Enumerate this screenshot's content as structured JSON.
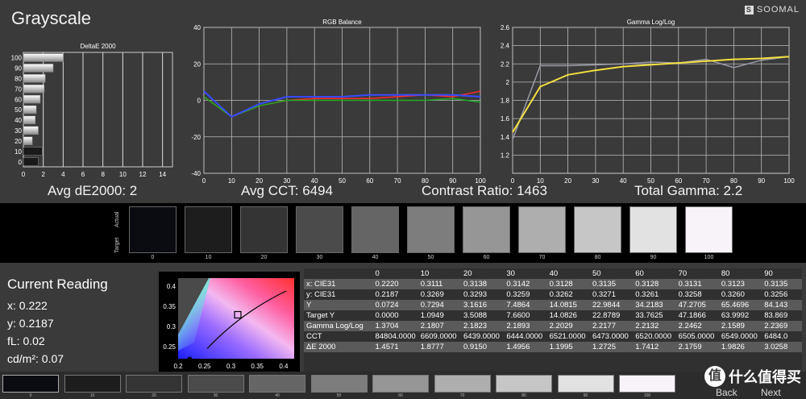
{
  "header": {
    "title": "Grayscale",
    "brand": "SOOMAL",
    "brand_mark": "S"
  },
  "summary": {
    "avg_de": "Avg dE2000: 2",
    "avg_cct": "Avg CCT: 6494",
    "contrast": "Contrast Ratio: 1463",
    "gamma": "Total Gamma: 2.2"
  },
  "swatches": {
    "actual_label": "Actual",
    "target_label": "Target",
    "labels": [
      "0",
      "10",
      "20",
      "30",
      "40",
      "50",
      "60",
      "70",
      "80",
      "90",
      "100"
    ],
    "grays": [
      "#0b0b12",
      "#1d1d1d",
      "#343434",
      "#4b4b4b",
      "#656565",
      "#7d7d7d",
      "#969696",
      "#aeaeae",
      "#c6c6c6",
      "#e2e2e2",
      "#f8f3f8"
    ]
  },
  "current": {
    "title": "Current Reading",
    "x": "x: 0.222",
    "y": "y: 0.2187",
    "fl": "fL: 0.02",
    "cdm": "cd/m²: 0.07"
  },
  "readings": {
    "columns": [
      "0",
      "10",
      "20",
      "30",
      "40",
      "50",
      "60",
      "70",
      "80",
      "90"
    ],
    "rows": [
      {
        "label": "x: CIE31",
        "values": [
          "0.2220",
          "0.3111",
          "0.3138",
          "0.3142",
          "0.3128",
          "0.3135",
          "0.3128",
          "0.3131",
          "0.3123",
          "0.3135"
        ]
      },
      {
        "label": "y: CIE31",
        "values": [
          "0.2187",
          "0.3269",
          "0.3293",
          "0.3259",
          "0.3262",
          "0.3271",
          "0.3261",
          "0.3258",
          "0.3260",
          "0.3256"
        ]
      },
      {
        "label": "Y",
        "values": [
          "0.0724",
          "0.7294",
          "3.1616",
          "7.4864",
          "14.0815",
          "22.9844",
          "34.2183",
          "47.2705",
          "65.4696",
          "84.143"
        ]
      },
      {
        "label": "Target Y",
        "values": [
          "0.0000",
          "1.0949",
          "3.5088",
          "7.6600",
          "14.0826",
          "22.8789",
          "33.7625",
          "47.1866",
          "63.9992",
          "83.869"
        ]
      },
      {
        "label": "Gamma Log/Log",
        "values": [
          "1.3704",
          "2.1807",
          "2.1823",
          "2.1893",
          "2.2029",
          "2.2177",
          "2.2132",
          "2.2462",
          "2.1589",
          "2.2369"
        ]
      },
      {
        "label": "CCT",
        "values": [
          "84804.0000",
          "6609.0000",
          "6439.0000",
          "6444.0000",
          "6521.0000",
          "6473.0000",
          "6520.0000",
          "6505.0000",
          "6549.0000",
          "6484.0"
        ]
      },
      {
        "label": "ΔE 2000",
        "values": [
          "1.4571",
          "1.8777",
          "0.9150",
          "1.4956",
          "1.1995",
          "1.2725",
          "1.7412",
          "2.1759",
          "1.9826",
          "3.0258"
        ]
      }
    ]
  },
  "bottom": {
    "labels": [
      "0",
      "10",
      "20",
      "30",
      "40",
      "50",
      "60",
      "70",
      "80",
      "90",
      "100"
    ],
    "back": "Back",
    "next": "Next",
    "watermark": "什么值得买",
    "watermark_mark": "值"
  },
  "chart_data": [
    {
      "type": "bar",
      "title": "DeltaE 2000",
      "orientation": "horizontal",
      "categories": [
        "100",
        "90",
        "80",
        "70",
        "60",
        "50",
        "40",
        "30",
        "20",
        "10",
        "0"
      ],
      "values": [
        4.0,
        3.0,
        2.2,
        2.1,
        1.7,
        1.3,
        1.2,
        1.5,
        0.9,
        1.9,
        1.5
      ],
      "xlim": [
        0,
        15
      ],
      "xticks": [
        "0",
        "2",
        "4",
        "6",
        "8",
        "10",
        "12",
        "14"
      ],
      "grid": true
    },
    {
      "type": "line",
      "title": "RGB Balance",
      "x": [
        0,
        10,
        20,
        30,
        40,
        50,
        60,
        70,
        80,
        90,
        100
      ],
      "ylim": [
        -40,
        40
      ],
      "yticks": [
        "40",
        "20",
        "0",
        "-20",
        "-40"
      ],
      "xticks": [
        "0",
        "10",
        "20",
        "30",
        "40",
        "50",
        "60",
        "70",
        "80",
        "90",
        "100"
      ],
      "series": [
        {
          "color": "#ff2a2a",
          "values": [
            2,
            -9,
            -3,
            0,
            1,
            1,
            1,
            2,
            3,
            2,
            5
          ]
        },
        {
          "color": "#22aa22",
          "values": [
            2,
            -9,
            -3,
            0,
            0,
            0,
            0,
            0,
            0,
            1,
            -1
          ]
        },
        {
          "color": "#3a4aff",
          "values": [
            5,
            -9,
            -2,
            2,
            2,
            2,
            3,
            3,
            3,
            3,
            2
          ]
        }
      ],
      "grid": true
    },
    {
      "type": "line",
      "title": "Gamma Log/Log",
      "x": [
        0,
        10,
        20,
        30,
        40,
        50,
        60,
        70,
        80,
        90,
        100
      ],
      "ylim": [
        1.0,
        2.6
      ],
      "yticks": [
        "2.6",
        "2.4",
        "2.2",
        "2",
        "1.8",
        "1.6",
        "1.4",
        "1.2"
      ],
      "xticks": [
        "0",
        "10",
        "20",
        "30",
        "40",
        "50",
        "60",
        "70",
        "80",
        "90",
        "100"
      ],
      "series": [
        {
          "color": "#9a9aa8",
          "values": [
            1.37,
            2.18,
            2.18,
            2.19,
            2.2,
            2.22,
            2.21,
            2.25,
            2.16,
            2.24,
            2.28
          ]
        },
        {
          "color": "#f2e040",
          "values": [
            1.45,
            1.95,
            2.08,
            2.13,
            2.17,
            2.19,
            2.21,
            2.23,
            2.25,
            2.26,
            2.28
          ]
        }
      ],
      "grid": true
    },
    {
      "type": "scatter",
      "title": "",
      "xlim": [
        0.2,
        0.42
      ],
      "ylim": [
        0.22,
        0.42
      ],
      "xticks": [
        "0.2",
        "0.25",
        "0.3",
        "0.35",
        "0.4"
      ],
      "yticks": [
        "0.4",
        "0.35",
        "0.3",
        "0.25"
      ],
      "points": [
        {
          "x": 0.313,
          "y": 0.329,
          "kind": "target"
        },
        {
          "x": 0.222,
          "y": 0.219,
          "kind": "measured"
        }
      ]
    }
  ]
}
